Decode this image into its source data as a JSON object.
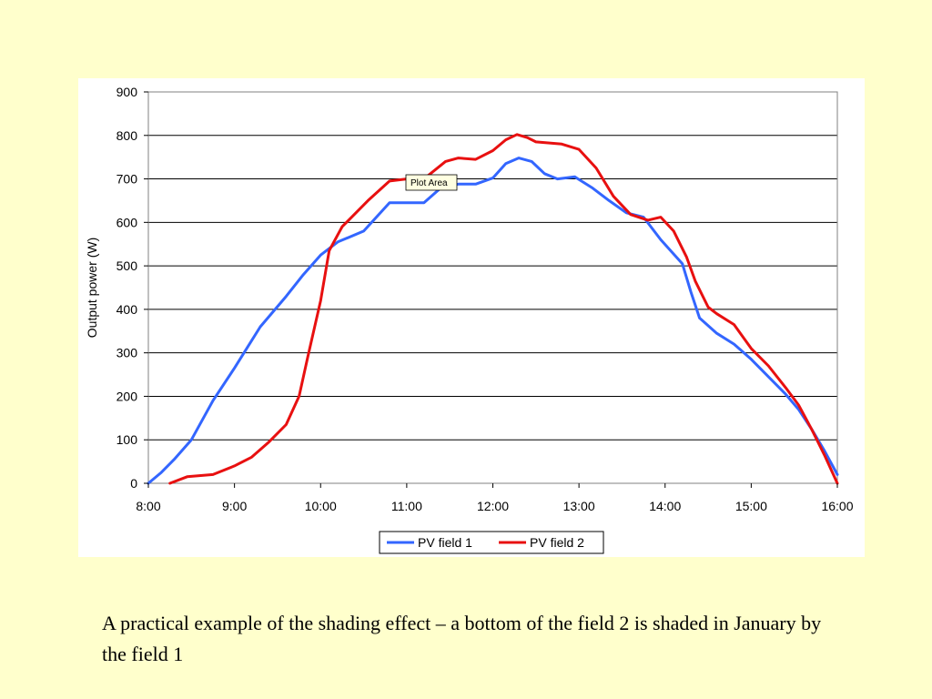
{
  "caption": "A practical example of the shading effect – a bottom of the field 2 is shaded in January by the field 1",
  "tooltip": "Plot Area",
  "chart_data": {
    "type": "line",
    "title": "",
    "xlabel": "",
    "ylabel": "Output power (W)",
    "ylim": [
      0,
      900
    ],
    "xlim": [
      8,
      16
    ],
    "grid": "horizontal",
    "legend_position": "bottom",
    "x_ticks": [
      "8:00",
      "9:00",
      "10:00",
      "11:00",
      "12:00",
      "13:00",
      "14:00",
      "15:00",
      "16:00"
    ],
    "y_ticks": [
      "0",
      "100",
      "200",
      "300",
      "400",
      "500",
      "600",
      "700",
      "800",
      "900"
    ],
    "series": [
      {
        "name": "PV field 1",
        "color": "#3366ff",
        "x": [
          8.0,
          8.15,
          8.3,
          8.5,
          8.75,
          9.0,
          9.3,
          9.6,
          9.8,
          10.0,
          10.2,
          10.5,
          10.8,
          11.0,
          11.2,
          11.4,
          11.6,
          11.8,
          12.0,
          12.15,
          12.3,
          12.45,
          12.6,
          12.75,
          12.95,
          13.15,
          13.35,
          13.55,
          13.75,
          13.95,
          14.2,
          14.3,
          14.4,
          14.6,
          14.8,
          15.0,
          15.2,
          15.4,
          15.55,
          15.7,
          15.85,
          16.0
        ],
        "y": [
          0,
          25,
          55,
          100,
          190,
          265,
          360,
          430,
          480,
          525,
          555,
          580,
          645,
          645,
          645,
          680,
          688,
          688,
          702,
          735,
          748,
          740,
          712,
          700,
          705,
          680,
          650,
          622,
          612,
          560,
          505,
          440,
          380,
          345,
          320,
          285,
          245,
          205,
          170,
          125,
          75,
          20
        ]
      },
      {
        "name": "PV field 2",
        "color": "#e81010",
        "x": [
          8.25,
          8.45,
          8.75,
          9.0,
          9.2,
          9.4,
          9.6,
          9.75,
          9.85,
          10.0,
          10.1,
          10.25,
          10.35,
          10.55,
          10.8,
          11.0,
          11.2,
          11.45,
          11.6,
          11.8,
          12.0,
          12.15,
          12.28,
          12.4,
          12.5,
          12.8,
          13.0,
          13.2,
          13.4,
          13.6,
          13.8,
          13.95,
          14.1,
          14.25,
          14.35,
          14.5,
          14.6,
          14.8,
          15.0,
          15.2,
          15.4,
          15.55,
          15.7,
          15.85,
          16.0
        ],
        "y": [
          0,
          15,
          20,
          40,
          60,
          95,
          135,
          200,
          290,
          420,
          535,
          590,
          610,
          650,
          695,
          700,
          700,
          740,
          748,
          745,
          765,
          790,
          802,
          795,
          785,
          780,
          768,
          725,
          660,
          618,
          605,
          612,
          580,
          520,
          465,
          405,
          390,
          365,
          310,
          270,
          220,
          180,
          125,
          65,
          0
        ]
      }
    ]
  }
}
